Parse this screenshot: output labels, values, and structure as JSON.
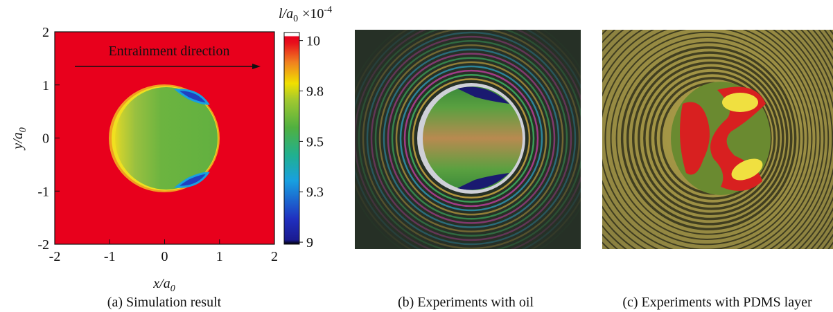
{
  "panels": [
    {
      "caption": "(a) Simulation result",
      "annotation": "Entrainment direction",
      "x_label": {
        "main": "x/a",
        "sub": "0"
      },
      "y_label": {
        "main": "y/a",
        "sub": "0"
      },
      "xlim": [
        -2,
        2
      ],
      "xticks": [
        -2,
        -1,
        0,
        1,
        2
      ],
      "ylim": [
        -2,
        2
      ],
      "yticks": [
        -2,
        -1,
        0,
        1,
        2
      ],
      "colorbar": {
        "label": {
          "main": "l/a",
          "sub": "0",
          "factor": "×10",
          "exponent": "-4"
        },
        "lim": [
          8.99,
          10.04
        ],
        "ticks": [
          10,
          {
            "value": 9.75,
            "label": "9.8"
          },
          9.5,
          {
            "value": 9.25,
            "label": "9.3"
          },
          9
        ]
      }
    },
    {
      "caption": "(b) Experiments with oil"
    },
    {
      "caption": "(c) Experiments with PDMS layer"
    }
  ]
}
